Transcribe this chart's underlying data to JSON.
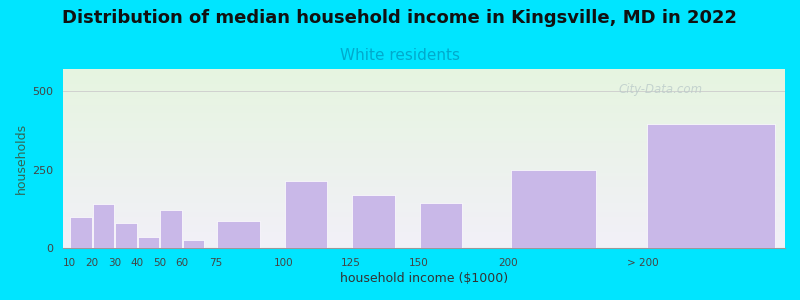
{
  "title": "Distribution of median household income in Kingsville, MD in 2022",
  "subtitle": "White residents",
  "xlabel": "household income ($1000)",
  "ylabel": "households",
  "categories": [
    "10",
    "20",
    "30",
    "40",
    "50",
    "60",
    "75",
    "100",
    "125",
    "150",
    "200",
    "> 200"
  ],
  "values": [
    100,
    140,
    80,
    35,
    120,
    25,
    85,
    215,
    170,
    145,
    248,
    395
  ],
  "bar_color": "#c9b8e8",
  "bar_edgecolor": "#ffffff",
  "background_outer": "#00e5ff",
  "background_plot_top": "#e6f5e0",
  "background_plot_bottom": "#f2f0f8",
  "title_fontsize": 13,
  "subtitle_fontsize": 11,
  "subtitle_color": "#00aacc",
  "ylabel_color": "#336655",
  "xlabel_color": "#333333",
  "yticks": [
    0,
    250,
    500
  ],
  "ylim": [
    0,
    570
  ],
  "watermark": "City-Data.com",
  "watermark_color": "#b8c8c8"
}
